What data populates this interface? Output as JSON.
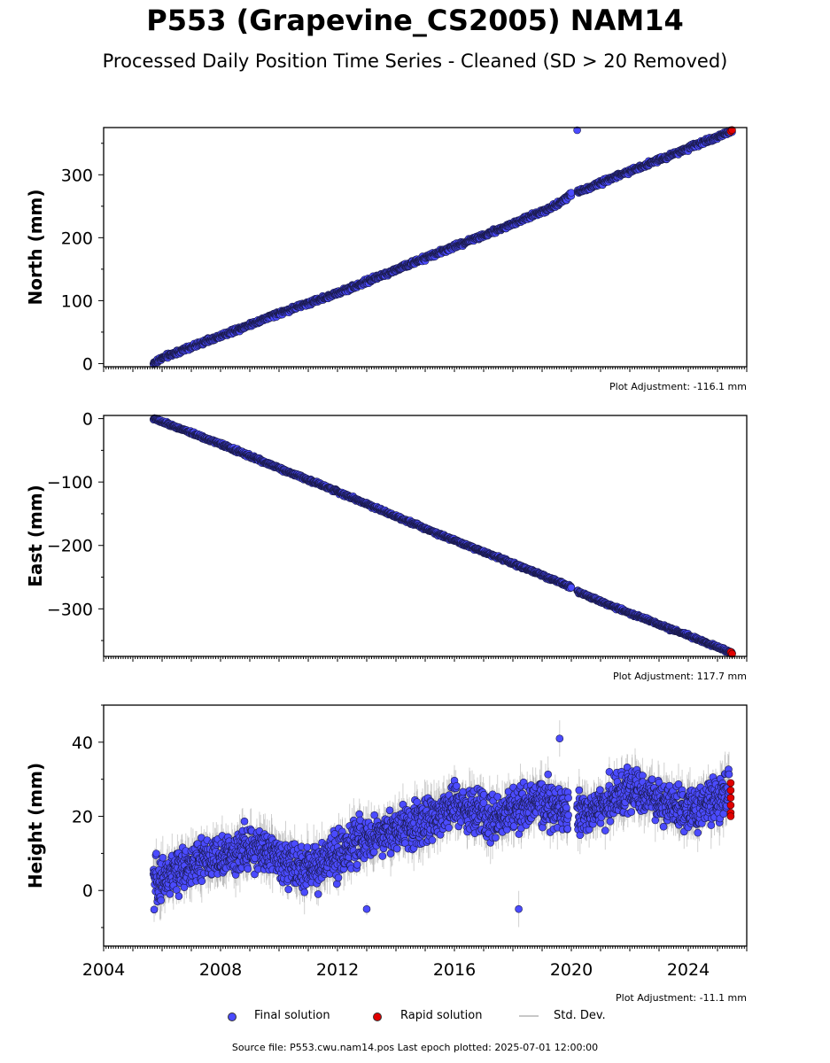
{
  "figure": {
    "title": "P553 (Grapevine_CS2005) NAM14",
    "subtitle": "Processed Daily Position Time Series - Cleaned (SD > 20 Removed)",
    "footer": "Source file: P553.cwu.nam14.pos  Last epoch plotted: 2025-07-01 12:00:00"
  },
  "legend": {
    "final_label": "Final solution",
    "rapid_label": "Rapid solution",
    "sd_label": "Std. Dev."
  },
  "colors": {
    "final": "#4b4bff",
    "rapid": "#e00000",
    "stddev": "#9a9a9a"
  },
  "chart_data": [
    {
      "type": "scatter",
      "ylabel": "North (mm)",
      "adjustment": "Plot Adjustment: -116.1 mm",
      "xlim": [
        2004,
        2026
      ],
      "ylim": [
        -5,
        375
      ],
      "yticks": [
        0,
        100,
        200,
        300
      ],
      "x_tick_labels": [],
      "grid": false,
      "series": [
        {
          "name": "Final solution",
          "segments": [
            {
              "x": [
                2005.7,
                2006.0,
                2008.0,
                2010.0,
                2012.0,
                2014.0,
                2016.0,
                2018.0,
                2019.5,
                2020.0
              ],
              "y": [
                0,
                9,
                44,
                80,
                112,
                149,
                186,
                222,
                252,
                270
              ]
            },
            {
              "x": [
                2020.2,
                2022.0,
                2024.0,
                2025.5
              ],
              "y": [
                272,
                306,
                342,
                370
              ]
            }
          ],
          "noise": 3
        },
        {
          "name": "Rapid solution",
          "x": [
            2025.45,
            2025.5
          ],
          "y": [
            369,
            371
          ]
        }
      ]
    },
    {
      "type": "scatter",
      "ylabel": "East (mm)",
      "adjustment": "Plot Adjustment: 117.7 mm",
      "xlim": [
        2004,
        2026
      ],
      "ylim": [
        -375,
        5
      ],
      "yticks": [
        0,
        -100,
        -200,
        -300
      ],
      "x_tick_labels": [],
      "grid": false,
      "series": [
        {
          "name": "Final solution",
          "segments": [
            {
              "x": [
                2005.7,
                2006.0,
                2008.0,
                2010.0,
                2012.0,
                2014.0,
                2016.0,
                2018.0,
                2020.0
              ],
              "y": [
                0,
                -5,
                -40,
                -78,
                -115,
                -154,
                -192,
                -228,
                -266
              ]
            },
            {
              "x": [
                2020.2,
                2022.0,
                2024.0,
                2025.5
              ],
              "y": [
                -273,
                -307,
                -342,
                -370
              ]
            }
          ],
          "noise": 2
        },
        {
          "name": "Rapid solution",
          "x": [
            2025.45,
            2025.5
          ],
          "y": [
            -368,
            -371
          ]
        }
      ]
    },
    {
      "type": "scatter",
      "ylabel": "Height (mm)",
      "adjustment": "Plot Adjustment: -11.1 mm",
      "xlim": [
        2004,
        2026
      ],
      "ylim": [
        -15,
        50
      ],
      "yticks": [
        0,
        20,
        40
      ],
      "x_tick_labels": [
        "2004",
        "2008",
        "2012",
        "2016",
        "2020",
        "2024"
      ],
      "x_tick_values": [
        2004,
        2008,
        2012,
        2016,
        2020,
        2024
      ],
      "grid": false,
      "series": [
        {
          "name": "Final solution",
          "segments": [
            {
              "x": [
                2005.7,
                2007.0,
                2008.0,
                2009.0,
                2010.0,
                2011.0,
                2012.0,
                2013.0,
                2014.0,
                2015.0,
                2016.0,
                2017.0,
                2018.0,
                2019.0,
                2019.9
              ],
              "y": [
                2,
                7,
                9,
                12,
                9,
                5,
                10,
                14,
                16,
                19,
                23,
                20,
                21,
                24,
                20
              ]
            },
            {
              "x": [
                2020.2,
                2021.0,
                2022.0,
                2023.0,
                2024.0,
                2025.4
              ],
              "y": [
                20,
                22,
                28,
                24,
                21,
                26
              ]
            }
          ],
          "noise": 5,
          "outliers": {
            "x": [
              2018.2,
              2019.6,
              2013.0
            ],
            "y": [
              -5,
              41,
              -5
            ]
          }
        },
        {
          "name": "Rapid solution",
          "x": [
            2025.45,
            2025.45,
            2025.45,
            2025.45,
            2025.45,
            2025.45
          ],
          "y": [
            29,
            27,
            25,
            23,
            21,
            20
          ]
        }
      ]
    }
  ]
}
